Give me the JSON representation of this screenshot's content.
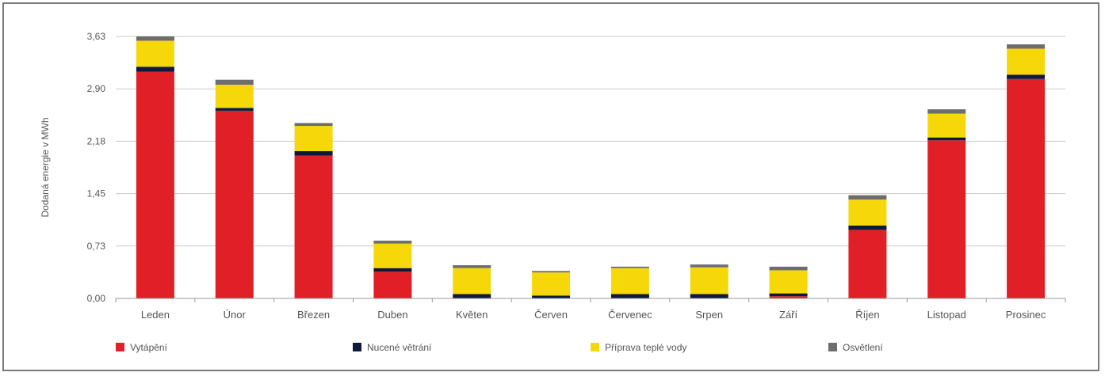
{
  "chart_data": {
    "type": "bar",
    "stacked": true,
    "ylabel": "Dodaná energie v MWh",
    "ylim": [
      0,
      3.63
    ],
    "yticks": [
      "0,00",
      "0,73",
      "1,45",
      "2,18",
      "2,90",
      "3,63"
    ],
    "ytick_values": [
      0,
      0.726,
      1.452,
      2.178,
      2.904,
      3.63
    ],
    "grid": true,
    "legend_position": "bottom",
    "categories": [
      "Leden",
      "Únor",
      "Březen",
      "Duben",
      "Květen",
      "Červen",
      "Červenec",
      "Srpen",
      "Září",
      "Říjen",
      "Listopad",
      "Prosinec"
    ],
    "series": [
      {
        "name": "Vytápění",
        "color": "#e01f26",
        "values": [
          3.14,
          2.6,
          1.98,
          0.37,
          0.0,
          0.0,
          0.0,
          0.0,
          0.03,
          0.95,
          2.19,
          3.04
        ]
      },
      {
        "name": "Nucené větrání",
        "color": "#0d1a3b",
        "values": [
          0.07,
          0.04,
          0.06,
          0.05,
          0.06,
          0.04,
          0.06,
          0.06,
          0.04,
          0.06,
          0.04,
          0.06
        ]
      },
      {
        "name": "Příprava teplé vody",
        "color": "#f6d80a",
        "values": [
          0.36,
          0.32,
          0.35,
          0.34,
          0.36,
          0.32,
          0.36,
          0.37,
          0.32,
          0.36,
          0.33,
          0.36
        ]
      },
      {
        "name": "Osvětlení",
        "color": "#6d6d6d",
        "values": [
          0.06,
          0.07,
          0.04,
          0.04,
          0.04,
          0.02,
          0.02,
          0.04,
          0.05,
          0.06,
          0.06,
          0.06
        ]
      }
    ]
  }
}
